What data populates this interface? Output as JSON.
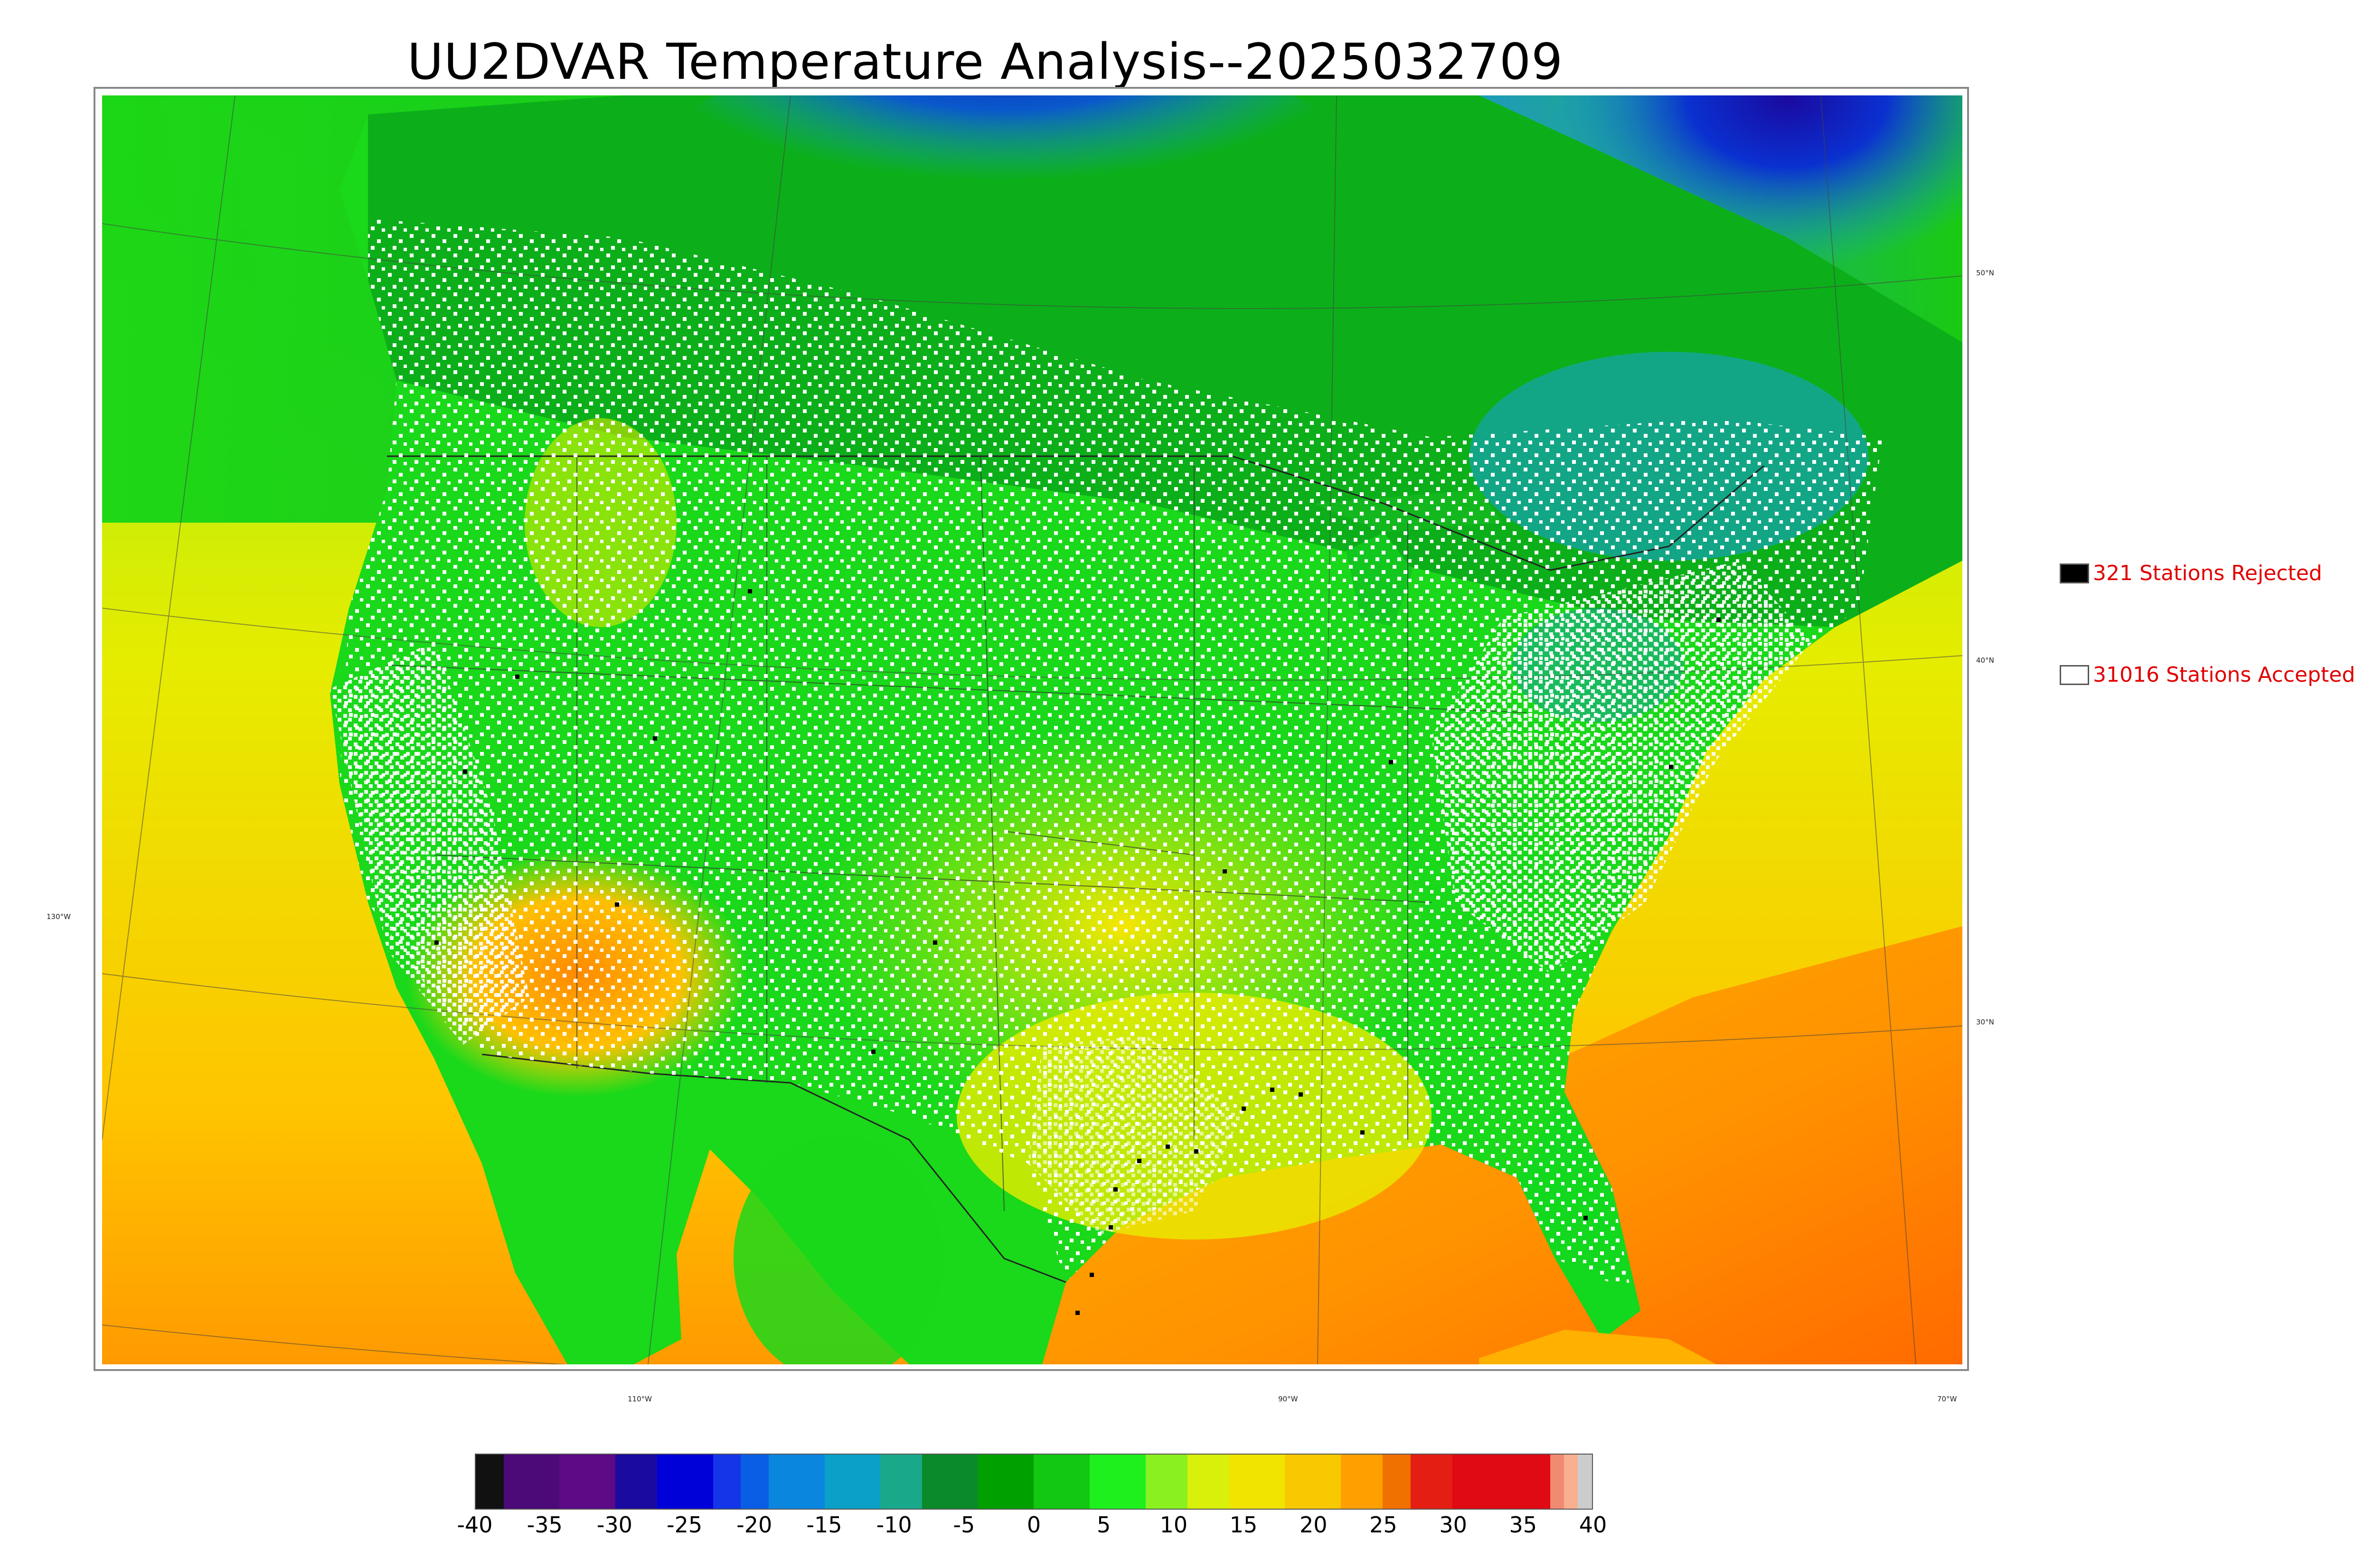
{
  "title": "UU2DVAR Temperature Analysis--2025032709",
  "legend": {
    "rejected_label": "321 Stations Rejected",
    "accepted_label": "31016 Stations Accepted",
    "rejected_color": "#000000",
    "accepted_color": "#ffffff",
    "text_color": "#e00000"
  },
  "map": {
    "latitude_labels": [
      "50°N",
      "40°N",
      "30°N"
    ],
    "longitude_labels": [
      "130°W",
      "110°W",
      "90°W",
      "70°W"
    ]
  },
  "colorbar": {
    "tick_labels": [
      "-40",
      "-35",
      "-30",
      "-25",
      "-20",
      "-15",
      "-10",
      "-5",
      "0",
      "5",
      "10",
      "15",
      "20",
      "25",
      "30",
      "35",
      "40"
    ],
    "min": -40,
    "max": 40,
    "colors": [
      {
        "from": -40,
        "to": -38,
        "color": "#111111"
      },
      {
        "from": -38,
        "to": -34,
        "color": "#4b0a78"
      },
      {
        "from": -34,
        "to": -30,
        "color": "#5c0a86"
      },
      {
        "from": -30,
        "to": -27,
        "color": "#1a0aa0"
      },
      {
        "from": -27,
        "to": -23,
        "color": "#0000d8"
      },
      {
        "from": -23,
        "to": -21,
        "color": "#1236e8"
      },
      {
        "from": -21,
        "to": -19,
        "color": "#0a5ee6"
      },
      {
        "from": -19,
        "to": -15,
        "color": "#0a86de"
      },
      {
        "from": -15,
        "to": -11,
        "color": "#0aa0c8"
      },
      {
        "from": -11,
        "to": -8,
        "color": "#1aa88a"
      },
      {
        "from": -8,
        "to": -4,
        "color": "#0a8a2a"
      },
      {
        "from": -4,
        "to": 0,
        "color": "#00a000"
      },
      {
        "from": 0,
        "to": 4,
        "color": "#12c812"
      },
      {
        "from": 4,
        "to": 8,
        "color": "#1ef01e"
      },
      {
        "from": 8,
        "to": 11,
        "color": "#8af020"
      },
      {
        "from": 11,
        "to": 14,
        "color": "#d8f00a"
      },
      {
        "from": 14,
        "to": 18,
        "color": "#f0e400"
      },
      {
        "from": 18,
        "to": 22,
        "color": "#f8c800"
      },
      {
        "from": 22,
        "to": 25,
        "color": "#ffa000"
      },
      {
        "from": 25,
        "to": 27,
        "color": "#f07000"
      },
      {
        "from": 27,
        "to": 30,
        "color": "#e41e12"
      },
      {
        "from": 30,
        "to": 37,
        "color": "#e00a12"
      },
      {
        "from": 37,
        "to": 38,
        "color": "#f08a70"
      },
      {
        "from": 38,
        "to": 39,
        "color": "#f8b090"
      },
      {
        "from": 39,
        "to": 40,
        "color": "#cccccc"
      }
    ]
  }
}
